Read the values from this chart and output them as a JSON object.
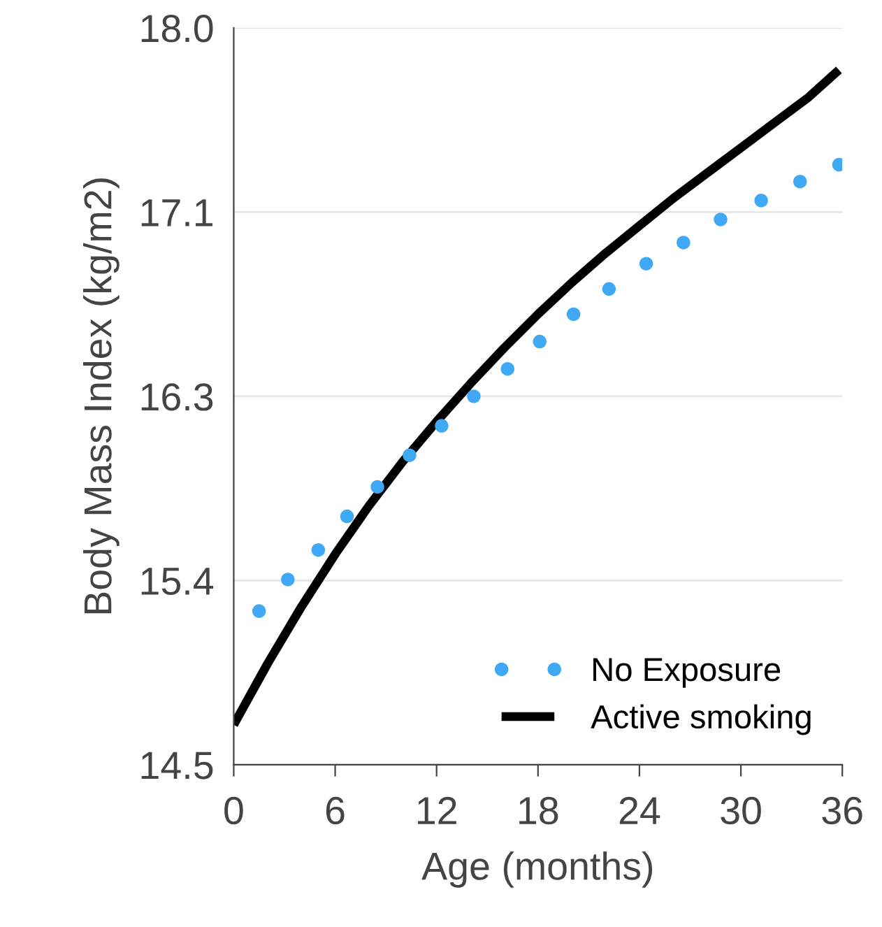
{
  "chart_data": {
    "type": "line",
    "xlabel": "Age (months)",
    "ylabel": "Body Mass Index (kg/m2)",
    "xlim": [
      0,
      36
    ],
    "xticks": [
      0,
      6,
      12,
      18,
      24,
      30,
      36
    ],
    "ylim": [
      14.5,
      18.0
    ],
    "yticks": [
      {
        "value": 14.5,
        "label": "14.5"
      },
      {
        "value": 15.375,
        "label": "15.4"
      },
      {
        "value": 16.25,
        "label": "16.3"
      },
      {
        "value": 17.125,
        "label": "17.1"
      },
      {
        "value": 18.0,
        "label": "18.0"
      }
    ],
    "grid": "y",
    "legend": "bottom right",
    "series": [
      {
        "name": "No Exposure",
        "type": "scatter",
        "color": "#3fa9f5",
        "marker": "circle",
        "x": [
          1.5,
          3.2,
          5.0,
          6.7,
          8.5,
          10.4,
          12.3,
          14.2,
          16.2,
          18.1,
          20.1,
          22.2,
          24.4,
          26.6,
          28.8,
          31.2,
          33.5,
          35.8
        ],
        "values": [
          15.23,
          15.38,
          15.52,
          15.68,
          15.82,
          15.97,
          16.11,
          16.25,
          16.38,
          16.51,
          16.64,
          16.76,
          16.88,
          16.98,
          17.09,
          17.18,
          17.27,
          17.35
        ]
      },
      {
        "name": "Active smoking",
        "color": "#000000",
        "line_style": "solid",
        "x": [
          0,
          2,
          4,
          6,
          8,
          10,
          12,
          14,
          16,
          18,
          20,
          22,
          24,
          26,
          28,
          30,
          32,
          34,
          35.8
        ],
        "values": [
          14.69,
          14.98,
          15.25,
          15.5,
          15.73,
          15.94,
          16.13,
          16.31,
          16.48,
          16.64,
          16.79,
          16.93,
          17.06,
          17.19,
          17.31,
          17.43,
          17.55,
          17.67,
          17.8
        ]
      }
    ]
  }
}
